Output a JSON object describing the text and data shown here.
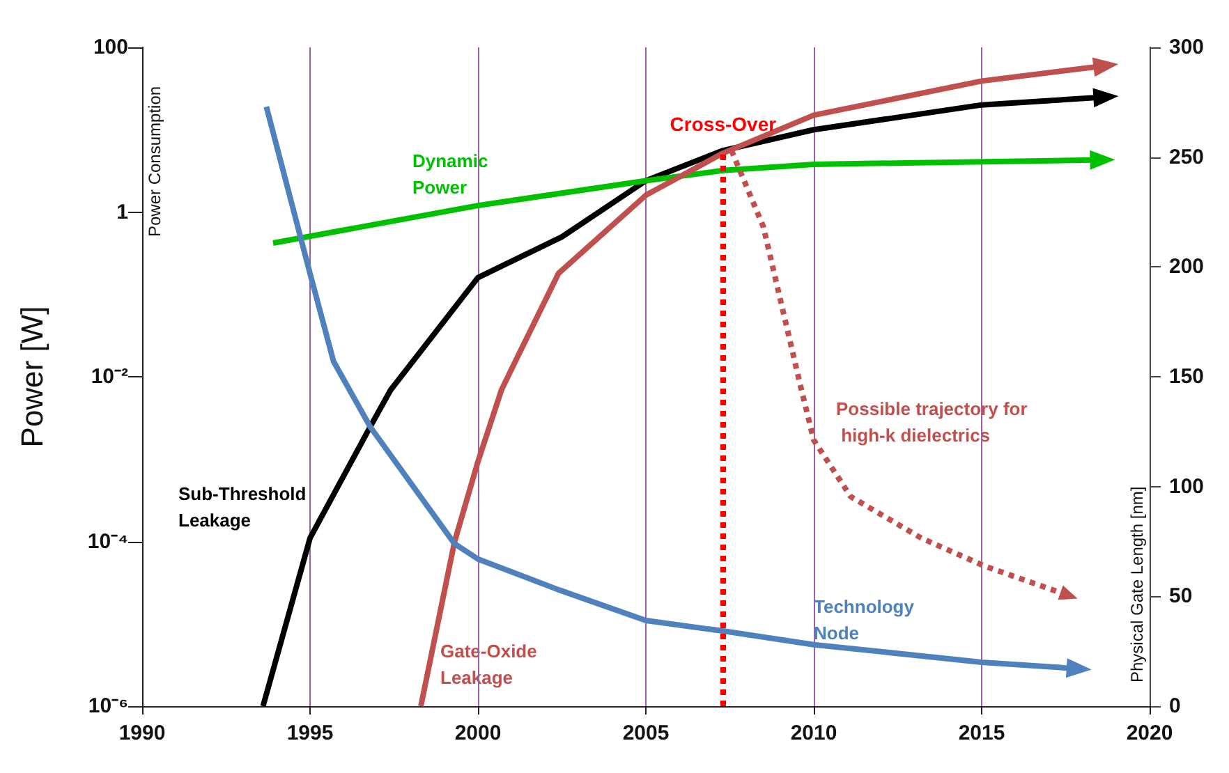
{
  "chart_data": {
    "type": "line",
    "ylabel": "Power [W]",
    "y2label": "Physical Gate Length [nm]",
    "annotations": [
      "Power Consumption"
    ],
    "xlim": [
      1990,
      2020
    ],
    "xticks": [
      1990,
      1995,
      2000,
      2005,
      2010,
      2015,
      2020
    ],
    "ylim": [
      1e-06,
      100
    ],
    "log": "y",
    "yticks": [
      {
        "value": 1e-06,
        "label": "10⁻⁶"
      },
      {
        "value": 0.0001,
        "label": "10⁻⁴"
      },
      {
        "value": 0.01,
        "label": "10⁻²"
      },
      1,
      100
    ],
    "y2lim": [
      0,
      300
    ],
    "y2ticks": [
      0,
      50,
      100,
      150,
      200,
      250,
      300
    ],
    "grid": "x",
    "legend": false,
    "marker": "none",
    "series": [
      {
        "name": "Sub-Threshold Leakage",
        "color": "#000000",
        "x": [
          1993.6,
          1995,
          1996.8,
          1997.4,
          2000,
          2002.5,
          2005,
          2007.3,
          2010,
          2015,
          2018.7
        ],
        "values": [
          1e-06,
          0.00011,
          0.0025,
          0.0069,
          0.16,
          0.5,
          2.4,
          5.6,
          10,
          20,
          25
        ]
      },
      {
        "name": "Dynamic Power",
        "color": "#00c000",
        "x": [
          1993.9,
          2000,
          2005,
          2007.3,
          2010,
          2018.6
        ],
        "values": [
          0.42,
          1.2,
          2.4,
          3.2,
          3.8,
          4.3
        ]
      },
      {
        "name": "Gate-Oxide Leakage",
        "color": "#c0504d",
        "x": [
          1998.3,
          1999.3,
          2000,
          2000.7,
          2001.1,
          2002.4,
          2005,
          2007.3,
          2010,
          2015,
          2018.7
        ],
        "values": [
          1e-06,
          9.8e-05,
          0.00093,
          0.0069,
          0.015,
          0.18,
          1.6,
          5.2,
          15,
          39,
          60
        ]
      },
      {
        "name": "Technology Node",
        "color": "#4f81bd",
        "axis": "y2",
        "x": [
          1993.7,
          1995,
          1995.7,
          1996.8,
          1999.3,
          2000,
          2002.4,
          2005,
          2007.4,
          2010,
          2015,
          2017.9
        ],
        "values": [
          273,
          197,
          157,
          127,
          74,
          67,
          53,
          39,
          34,
          28,
          20,
          17
        ]
      },
      {
        "name": "Possible trajectory for high-k dielectrics",
        "color": "#c0504d",
        "line_style": "dotted",
        "x": [
          2007.55,
          2008.5,
          2009.6,
          2010,
          2011.1,
          2013.2,
          2015.1,
          2017.6
        ],
        "values": [
          5.6,
          0.66,
          0.0079,
          0.0017,
          0.00035,
          0.00011,
          5e-05,
          2.2e-05
        ]
      }
    ],
    "ref_lines": [
      {
        "axis": "x",
        "value": 2007.3,
        "label": "Cross-Over",
        "color": "#ff0000",
        "line_style": "dotted"
      }
    ]
  }
}
